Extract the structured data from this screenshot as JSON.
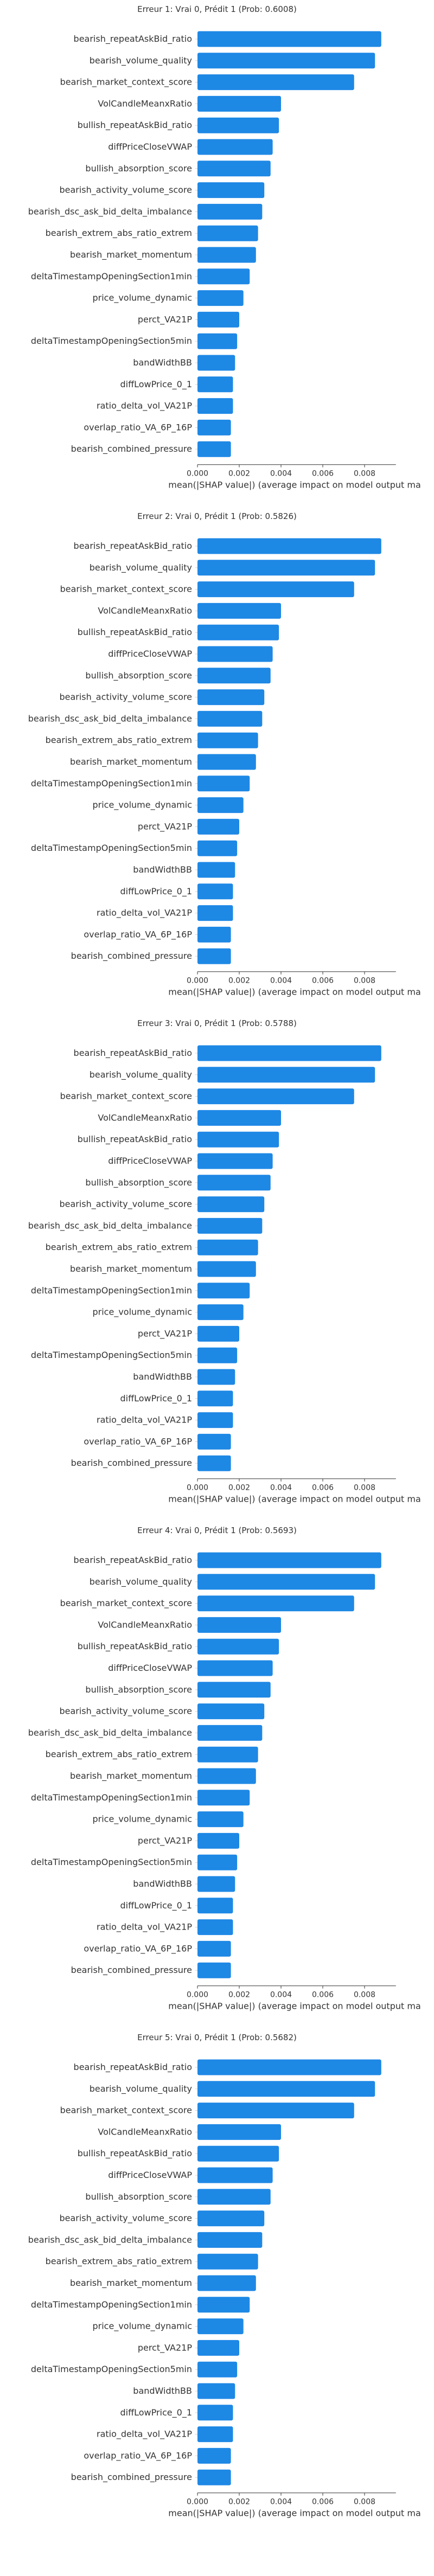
{
  "bar_color": "#1E88E5",
  "text_color": "#333333",
  "chart_data": [
    {
      "type": "bar",
      "orientation": "horizontal",
      "title": "Erreur 1: Vrai 0, Prédit 1 (Prob: 0.6008)",
      "xlabel": "mean(|SHAP value|) (average impact on model output ma",
      "xlim": [
        0,
        0.0095
      ],
      "xticks": [
        "0.000",
        "0.002",
        "0.004",
        "0.006",
        "0.008"
      ],
      "grid": false,
      "categories": [
        "bearish_repeatAskBid_ratio",
        "bearish_volume_quality",
        "bearish_market_context_score",
        "VolCandleMeanxRatio",
        "bullish_repeatAskBid_ratio",
        "diffPriceCloseVWAP",
        "bullish_absorption_score",
        "bearish_activity_volume_score",
        "bearish_dsc_ask_bid_delta_imbalance",
        "bearish_extrem_abs_ratio_extrem",
        "bearish_market_momentum",
        "deltaTimestampOpeningSection1min",
        "price_volume_dynamic",
        "perct_VA21P",
        "deltaTimestampOpeningSection5min",
        "bandWidthBB",
        "diffLowPrice_0_1",
        "ratio_delta_vol_VA21P",
        "overlap_ratio_VA_6P_16P",
        "bearish_combined_pressure"
      ],
      "values": [
        0.0088,
        0.0085,
        0.0075,
        0.004,
        0.0039,
        0.0036,
        0.0035,
        0.0032,
        0.0031,
        0.0029,
        0.0028,
        0.0025,
        0.0022,
        0.002,
        0.0019,
        0.0018,
        0.0017,
        0.0017,
        0.0016,
        0.0016
      ]
    },
    {
      "type": "bar",
      "orientation": "horizontal",
      "title": "Erreur 2: Vrai 0, Prédit 1 (Prob: 0.5826)",
      "xlabel": "mean(|SHAP value|) (average impact on model output ma",
      "xlim": [
        0,
        0.0095
      ],
      "xticks": [
        "0.000",
        "0.002",
        "0.004",
        "0.006",
        "0.008"
      ],
      "grid": false,
      "categories": [
        "bearish_repeatAskBid_ratio",
        "bearish_volume_quality",
        "bearish_market_context_score",
        "VolCandleMeanxRatio",
        "bullish_repeatAskBid_ratio",
        "diffPriceCloseVWAP",
        "bullish_absorption_score",
        "bearish_activity_volume_score",
        "bearish_dsc_ask_bid_delta_imbalance",
        "bearish_extrem_abs_ratio_extrem",
        "bearish_market_momentum",
        "deltaTimestampOpeningSection1min",
        "price_volume_dynamic",
        "perct_VA21P",
        "deltaTimestampOpeningSection5min",
        "bandWidthBB",
        "diffLowPrice_0_1",
        "ratio_delta_vol_VA21P",
        "overlap_ratio_VA_6P_16P",
        "bearish_combined_pressure"
      ],
      "values": [
        0.0088,
        0.0085,
        0.0075,
        0.004,
        0.0039,
        0.0036,
        0.0035,
        0.0032,
        0.0031,
        0.0029,
        0.0028,
        0.0025,
        0.0022,
        0.002,
        0.0019,
        0.0018,
        0.0017,
        0.0017,
        0.0016,
        0.0016
      ]
    },
    {
      "type": "bar",
      "orientation": "horizontal",
      "title": "Erreur 3: Vrai 0, Prédit 1 (Prob: 0.5788)",
      "xlabel": "mean(|SHAP value|) (average impact on model output ma",
      "xlim": [
        0,
        0.0095
      ],
      "xticks": [
        "0.000",
        "0.002",
        "0.004",
        "0.006",
        "0.008"
      ],
      "grid": false,
      "categories": [
        "bearish_repeatAskBid_ratio",
        "bearish_volume_quality",
        "bearish_market_context_score",
        "VolCandleMeanxRatio",
        "bullish_repeatAskBid_ratio",
        "diffPriceCloseVWAP",
        "bullish_absorption_score",
        "bearish_activity_volume_score",
        "bearish_dsc_ask_bid_delta_imbalance",
        "bearish_extrem_abs_ratio_extrem",
        "bearish_market_momentum",
        "deltaTimestampOpeningSection1min",
        "price_volume_dynamic",
        "perct_VA21P",
        "deltaTimestampOpeningSection5min",
        "bandWidthBB",
        "diffLowPrice_0_1",
        "ratio_delta_vol_VA21P",
        "overlap_ratio_VA_6P_16P",
        "bearish_combined_pressure"
      ],
      "values": [
        0.0088,
        0.0085,
        0.0075,
        0.004,
        0.0039,
        0.0036,
        0.0035,
        0.0032,
        0.0031,
        0.0029,
        0.0028,
        0.0025,
        0.0022,
        0.002,
        0.0019,
        0.0018,
        0.0017,
        0.0017,
        0.0016,
        0.0016
      ]
    },
    {
      "type": "bar",
      "orientation": "horizontal",
      "title": "Erreur 4: Vrai 0, Prédit 1 (Prob: 0.5693)",
      "xlabel": "mean(|SHAP value|) (average impact on model output ma",
      "xlim": [
        0,
        0.0095
      ],
      "xticks": [
        "0.000",
        "0.002",
        "0.004",
        "0.006",
        "0.008"
      ],
      "grid": false,
      "categories": [
        "bearish_repeatAskBid_ratio",
        "bearish_volume_quality",
        "bearish_market_context_score",
        "VolCandleMeanxRatio",
        "bullish_repeatAskBid_ratio",
        "diffPriceCloseVWAP",
        "bullish_absorption_score",
        "bearish_activity_volume_score",
        "bearish_dsc_ask_bid_delta_imbalance",
        "bearish_extrem_abs_ratio_extrem",
        "bearish_market_momentum",
        "deltaTimestampOpeningSection1min",
        "price_volume_dynamic",
        "perct_VA21P",
        "deltaTimestampOpeningSection5min",
        "bandWidthBB",
        "diffLowPrice_0_1",
        "ratio_delta_vol_VA21P",
        "overlap_ratio_VA_6P_16P",
        "bearish_combined_pressure"
      ],
      "values": [
        0.0088,
        0.0085,
        0.0075,
        0.004,
        0.0039,
        0.0036,
        0.0035,
        0.0032,
        0.0031,
        0.0029,
        0.0028,
        0.0025,
        0.0022,
        0.002,
        0.0019,
        0.0018,
        0.0017,
        0.0017,
        0.0016,
        0.0016
      ]
    },
    {
      "type": "bar",
      "orientation": "horizontal",
      "title": "Erreur 5: Vrai 0, Prédit 1 (Prob: 0.5682)",
      "xlabel": "mean(|SHAP value|) (average impact on model output ma",
      "xlim": [
        0,
        0.0095
      ],
      "xticks": [
        "0.000",
        "0.002",
        "0.004",
        "0.006",
        "0.008"
      ],
      "grid": false,
      "categories": [
        "bearish_repeatAskBid_ratio",
        "bearish_volume_quality",
        "bearish_market_context_score",
        "VolCandleMeanxRatio",
        "bullish_repeatAskBid_ratio",
        "diffPriceCloseVWAP",
        "bullish_absorption_score",
        "bearish_activity_volume_score",
        "bearish_dsc_ask_bid_delta_imbalance",
        "bearish_extrem_abs_ratio_extrem",
        "bearish_market_momentum",
        "deltaTimestampOpeningSection1min",
        "price_volume_dynamic",
        "perct_VA21P",
        "deltaTimestampOpeningSection5min",
        "bandWidthBB",
        "diffLowPrice_0_1",
        "ratio_delta_vol_VA21P",
        "overlap_ratio_VA_6P_16P",
        "bearish_combined_pressure"
      ],
      "values": [
        0.0088,
        0.0085,
        0.0075,
        0.004,
        0.0039,
        0.0036,
        0.0035,
        0.0032,
        0.0031,
        0.0029,
        0.0028,
        0.0025,
        0.0022,
        0.002,
        0.0019,
        0.0018,
        0.0017,
        0.0017,
        0.0016,
        0.0016
      ]
    }
  ]
}
